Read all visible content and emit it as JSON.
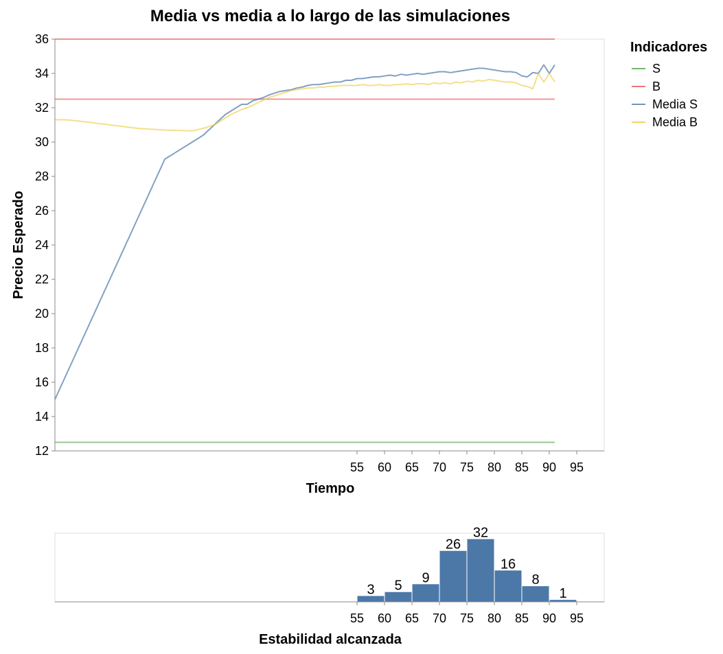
{
  "chart_data": [
    {
      "type": "line",
      "title": "Media vs media a lo largo de las simulaciones",
      "xlabel": "Tiempo",
      "ylabel": "Precio Esperado",
      "xlim": [
        0,
        100
      ],
      "ylim": [
        12,
        36
      ],
      "x_ticks": [
        55,
        60,
        65,
        70,
        75,
        80,
        85,
        90,
        95
      ],
      "y_ticks": [
        12,
        14,
        16,
        18,
        20,
        22,
        24,
        26,
        28,
        30,
        32,
        34,
        36
      ],
      "grid": false,
      "legend": {
        "title": "Indicadores",
        "position": "top-right",
        "entries": [
          {
            "label": "S",
            "color": "#54a24b"
          },
          {
            "label": "B",
            "color": "#e45756"
          },
          {
            "label": "Media S",
            "color": "#4c78a8"
          },
          {
            "label": "Media B",
            "color": "#eeca3b"
          }
        ]
      },
      "series": [
        {
          "name": "S",
          "color": "#54a24b",
          "opacity": 0.6,
          "x": [
            0,
            91
          ],
          "y": [
            12.5,
            12.5
          ]
        },
        {
          "name": "B",
          "color": "#e45756",
          "opacity": 0.6,
          "x": [
            0,
            91
          ],
          "y": [
            36.0,
            36.0
          ]
        },
        {
          "name": "B",
          "color": "#e45756",
          "opacity": 0.6,
          "x": [
            0,
            91
          ],
          "y": [
            32.5,
            32.5
          ]
        },
        {
          "name": "Media S",
          "color": "#4c78a8",
          "opacity": 0.7,
          "x": [
            0,
            5,
            10,
            15,
            20,
            25,
            27,
            29,
            30,
            31,
            32,
            33,
            34,
            35,
            36,
            37,
            38,
            39,
            40,
            41,
            42,
            43,
            44,
            45,
            46,
            47,
            48,
            49,
            50,
            51,
            52,
            53,
            54,
            55,
            56,
            57,
            58,
            59,
            60,
            61,
            62,
            63,
            64,
            65,
            66,
            67,
            68,
            69,
            70,
            71,
            72,
            73,
            74,
            75,
            76,
            77,
            78,
            79,
            80,
            81,
            82,
            83,
            84,
            85,
            86,
            87,
            88,
            89,
            90,
            91
          ],
          "y": [
            15.0,
            18.5,
            22.0,
            25.5,
            29.0,
            30.0,
            30.4,
            31.0,
            31.3,
            31.6,
            31.8,
            32.0,
            32.2,
            32.2,
            32.4,
            32.5,
            32.6,
            32.75,
            32.85,
            32.95,
            33.0,
            33.05,
            33.15,
            33.2,
            33.3,
            33.35,
            33.35,
            33.4,
            33.45,
            33.5,
            33.5,
            33.6,
            33.6,
            33.7,
            33.7,
            33.75,
            33.8,
            33.8,
            33.85,
            33.9,
            33.85,
            33.95,
            33.9,
            33.95,
            34.0,
            33.95,
            34.0,
            34.05,
            34.1,
            34.1,
            34.05,
            34.1,
            34.15,
            34.2,
            34.25,
            34.3,
            34.3,
            34.25,
            34.2,
            34.15,
            34.1,
            34.1,
            34.05,
            33.85,
            33.8,
            34.05,
            34.0,
            34.5,
            34.0,
            34.5
          ]
        },
        {
          "name": "Media B",
          "color": "#eeca3b",
          "opacity": 0.6,
          "x": [
            0,
            2,
            5,
            10,
            15,
            20,
            25,
            27,
            29,
            30,
            31,
            32,
            33,
            34,
            35,
            36,
            37,
            38,
            39,
            40,
            41,
            42,
            43,
            44,
            45,
            46,
            47,
            48,
            49,
            50,
            51,
            52,
            53,
            54,
            55,
            56,
            57,
            58,
            59,
            60,
            61,
            62,
            63,
            64,
            65,
            66,
            67,
            68,
            69,
            70,
            71,
            72,
            73,
            74,
            75,
            76,
            77,
            78,
            79,
            80,
            81,
            82,
            83,
            84,
            85,
            86,
            87,
            88,
            89,
            90,
            91
          ],
          "y": [
            31.3,
            31.3,
            31.2,
            31.0,
            30.8,
            30.7,
            30.65,
            30.8,
            31.0,
            31.2,
            31.4,
            31.6,
            31.75,
            31.9,
            32.0,
            32.15,
            32.3,
            32.45,
            32.6,
            32.7,
            32.8,
            32.9,
            33.0,
            33.05,
            33.1,
            33.15,
            33.15,
            33.2,
            33.2,
            33.25,
            33.25,
            33.3,
            33.3,
            33.3,
            33.3,
            33.35,
            33.3,
            33.3,
            33.35,
            33.3,
            33.3,
            33.35,
            33.35,
            33.4,
            33.35,
            33.4,
            33.4,
            33.35,
            33.45,
            33.4,
            33.45,
            33.4,
            33.5,
            33.45,
            33.55,
            33.5,
            33.6,
            33.55,
            33.65,
            33.6,
            33.55,
            33.5,
            33.5,
            33.45,
            33.3,
            33.25,
            33.1,
            34.0,
            33.5,
            34.0,
            33.5
          ]
        }
      ]
    },
    {
      "type": "bar",
      "title": "",
      "xlabel": "Estabilidad alcanzada",
      "ylabel": "",
      "xlim": [
        0,
        100
      ],
      "ylim": [
        0,
        35
      ],
      "x_ticks": [
        55,
        60,
        65,
        70,
        75,
        80,
        85,
        90,
        95
      ],
      "bar_color": "#4c78a8",
      "bins": [
        {
          "start": 55,
          "end": 60,
          "count": 3,
          "label": "3"
        },
        {
          "start": 60,
          "end": 65,
          "count": 5,
          "label": "5"
        },
        {
          "start": 65,
          "end": 70,
          "count": 9,
          "label": "9"
        },
        {
          "start": 70,
          "end": 75,
          "count": 26,
          "label": "26"
        },
        {
          "start": 75,
          "end": 80,
          "count": 32,
          "label": "32"
        },
        {
          "start": 80,
          "end": 85,
          "count": 16,
          "label": "16"
        },
        {
          "start": 85,
          "end": 90,
          "count": 8,
          "label": "8"
        },
        {
          "start": 90,
          "end": 95,
          "count": 1,
          "label": "1"
        }
      ]
    }
  ]
}
